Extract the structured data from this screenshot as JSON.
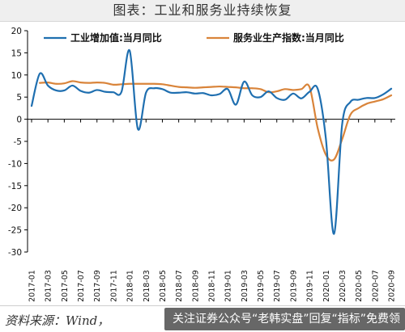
{
  "title": "图表：工业和服务业持续恢复",
  "source": "资料来源：Wind，",
  "watermark": "关注证券公众号“老韩实盘”回复“指标”免费领",
  "colors": {
    "industry": "#1f6fb0",
    "services": "#d9843a",
    "axis": "#000000"
  },
  "chart_data": {
    "type": "line",
    "title": "图表：工业和服务业持续恢复",
    "xlabel": "",
    "ylabel": "",
    "ylim": [
      -30,
      20
    ],
    "yticks": [
      20,
      15,
      10,
      5,
      0,
      -5,
      -10,
      -15,
      -20,
      -25,
      -30
    ],
    "x_tick_labels": [
      "2017-01",
      "2017-03",
      "2017-05",
      "2017-07",
      "2017-09",
      "2017-11",
      "2018-01",
      "2018-03",
      "2018-05",
      "2018-07",
      "2018-09",
      "2018-11",
      "2019-01",
      "2019-03",
      "2019-05",
      "2019-07",
      "2019-09",
      "2019-11",
      "2020-01",
      "2020-03",
      "2020-05",
      "2020-07",
      "2020-09"
    ],
    "legend_position": "top-left",
    "grid": false,
    "series": [
      {
        "name": "工业增加值:当月同比",
        "color": "#1f6fb0",
        "x": [
          "2017-01",
          "2017-02",
          "2017-03",
          "2017-04",
          "2017-05",
          "2017-06",
          "2017-07",
          "2017-08",
          "2017-09",
          "2017-10",
          "2017-11",
          "2017-12",
          "2018-01",
          "2018-02",
          "2018-03",
          "2018-04",
          "2018-05",
          "2018-06",
          "2018-07",
          "2018-08",
          "2018-09",
          "2018-10",
          "2018-11",
          "2018-12",
          "2019-01",
          "2019-02",
          "2019-03",
          "2019-04",
          "2019-05",
          "2019-06",
          "2019-07",
          "2019-08",
          "2019-09",
          "2019-10",
          "2019-11",
          "2019-12",
          "2020-01",
          "2020-02",
          "2020-03",
          "2020-04",
          "2020-05",
          "2020-06",
          "2020-07",
          "2020-08",
          "2020-09"
        ],
        "values": [
          3.0,
          10.3,
          7.6,
          6.5,
          6.5,
          7.6,
          6.4,
          6.0,
          6.6,
          6.2,
          6.1,
          6.2,
          15.5,
          -2.2,
          6.0,
          7.0,
          6.8,
          6.0,
          6.0,
          6.1,
          5.8,
          5.9,
          5.4,
          5.7,
          6.8,
          3.3,
          8.5,
          5.4,
          5.0,
          6.3,
          4.8,
          4.4,
          5.8,
          4.7,
          6.2,
          6.9,
          -4.3,
          -25.9,
          -1.1,
          3.9,
          4.4,
          4.8,
          4.8,
          5.6,
          6.9
        ]
      },
      {
        "name": "服务业生产指数:当月同比",
        "color": "#d9843a",
        "x": [
          "2017-02",
          "2017-03",
          "2017-04",
          "2017-05",
          "2017-06",
          "2017-07",
          "2017-08",
          "2017-09",
          "2017-10",
          "2017-11",
          "2017-12",
          "2018-01",
          "2018-02",
          "2018-03",
          "2018-04",
          "2018-05",
          "2018-06",
          "2018-07",
          "2018-08",
          "2018-09",
          "2018-10",
          "2018-11",
          "2018-12",
          "2019-01",
          "2019-02",
          "2019-03",
          "2019-04",
          "2019-05",
          "2019-06",
          "2019-07",
          "2019-08",
          "2019-09",
          "2019-10",
          "2019-11",
          "2019-12",
          "2020-01",
          "2020-02",
          "2020-03",
          "2020-04",
          "2020-05",
          "2020-06",
          "2020-07",
          "2020-08",
          "2020-09"
        ],
        "values": [
          8.2,
          8.3,
          8.0,
          8.1,
          8.6,
          8.3,
          8.2,
          8.3,
          8.2,
          7.8,
          7.9,
          8.0,
          8.0,
          8.0,
          8.0,
          7.9,
          7.6,
          7.3,
          7.2,
          7.1,
          7.2,
          7.3,
          7.4,
          7.3,
          7.2,
          7.0,
          7.0,
          6.8,
          6.1,
          6.3,
          6.8,
          6.6,
          6.8,
          7.3,
          -2.0,
          -8.0,
          -9.1,
          -4.5,
          1.0,
          2.5,
          3.5,
          4.0,
          4.5,
          5.4
        ]
      }
    ]
  }
}
